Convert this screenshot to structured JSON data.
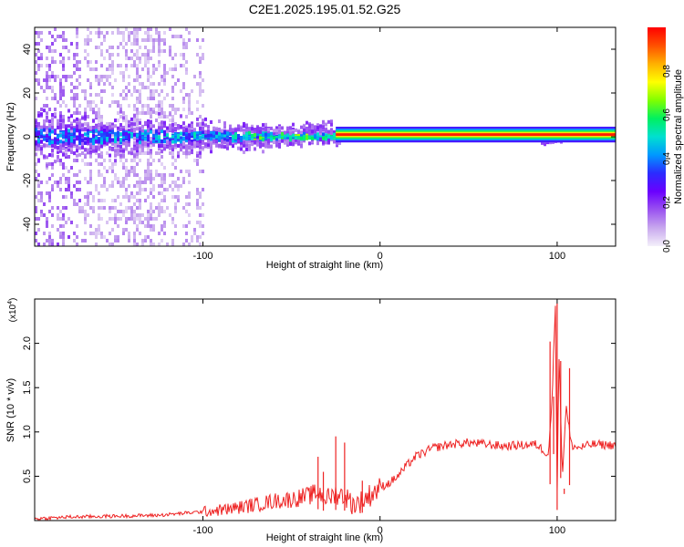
{
  "title": "C2E1.2025.195.01.52.G25",
  "colors": {
    "snr_line": "#ee2222",
    "zero_line": "#ee1111",
    "colormap": [
      "#f4f0fa",
      "#c8a8ee",
      "#9a52f0",
      "#6a00ff",
      "#2b2bff",
      "#0098ff",
      "#00e0d0",
      "#00f060",
      "#80ff00",
      "#ffff00",
      "#ffb000",
      "#ff5000",
      "#ff0000"
    ]
  },
  "chart_data": [
    {
      "type": "heatmap",
      "name": "spectrogram",
      "xlabel": "Height of straight line (km)",
      "ylabel": "Frequency (Hz)",
      "xlim": [
        -195,
        133
      ],
      "ylim": [
        -50,
        50
      ],
      "xticks": [
        -100,
        0,
        100
      ],
      "yticks": [
        -40,
        -20,
        0,
        20,
        40
      ],
      "grid": false,
      "colorbar": {
        "label": "Normalized spectral amplitude",
        "range": [
          0,
          1
        ],
        "ticks": [
          "0.0",
          "0.2",
          "0.4",
          "0.6",
          "0.8"
        ]
      },
      "features": {
        "diffuse_noise_region_km": [
          -195,
          -100
        ],
        "broadband_core_region_km": [
          -195,
          -25
        ],
        "core_halfwidth_hz_at_start": 10,
        "core_halfwidth_hz_at_end": 3,
        "narrow_line_frequency_hz": 1,
        "narrow_line_start_km": -25,
        "narrow_line_amplitude": 0.97,
        "secondary_cluster_km": [
          90,
          105
        ]
      }
    },
    {
      "type": "line",
      "name": "snr",
      "xlabel": "Height of straight line (km)",
      "ylabel": "SNR (10 * v/v)",
      "multiplier_label": "(x10",
      "multiplier_exponent": "4",
      "xlim": [
        -195,
        133
      ],
      "ylim": [
        0,
        2.5
      ],
      "xticks": [
        -100,
        0,
        100
      ],
      "yticks": [
        0.5,
        1.0,
        1.5,
        2.0
      ],
      "ytick_labels": [
        "0.5",
        "1.0",
        "1.5",
        "2.0"
      ],
      "grid": false,
      "x": [
        -195,
        -175,
        -150,
        -125,
        -100,
        -85,
        -70,
        -60,
        -50,
        -40,
        -35,
        -30,
        -25,
        -20,
        -15,
        -10,
        -5,
        0,
        5,
        10,
        15,
        20,
        30,
        40,
        50,
        60,
        70,
        80,
        88,
        92,
        95,
        97,
        99,
        100,
        101,
        103,
        105,
        108,
        112,
        120,
        133
      ],
      "values": [
        0.02,
        0.04,
        0.05,
        0.06,
        0.1,
        0.13,
        0.18,
        0.22,
        0.24,
        0.28,
        0.32,
        0.25,
        0.3,
        0.28,
        0.18,
        0.22,
        0.3,
        0.38,
        0.42,
        0.5,
        0.62,
        0.72,
        0.82,
        0.86,
        0.88,
        0.86,
        0.84,
        0.85,
        0.86,
        0.8,
        0.75,
        1.3,
        2.45,
        0.3,
        1.9,
        0.5,
        1.3,
        0.85,
        0.82,
        0.86,
        0.85
      ],
      "spikes": [
        {
          "x": -35,
          "y": 0.72
        },
        {
          "x": -32,
          "y": 0.55
        },
        {
          "x": -25,
          "y": 0.95
        },
        {
          "x": -20,
          "y": 0.88
        },
        {
          "x": -10,
          "y": 0.45
        },
        {
          "x": 96,
          "y": 2.02
        },
        {
          "x": 98,
          "y": 1.4
        },
        {
          "x": 100,
          "y": 2.45
        },
        {
          "x": 102,
          "y": 1.8
        },
        {
          "x": 104,
          "y": 0.3
        },
        {
          "x": 107,
          "y": 1.72
        }
      ]
    }
  ]
}
